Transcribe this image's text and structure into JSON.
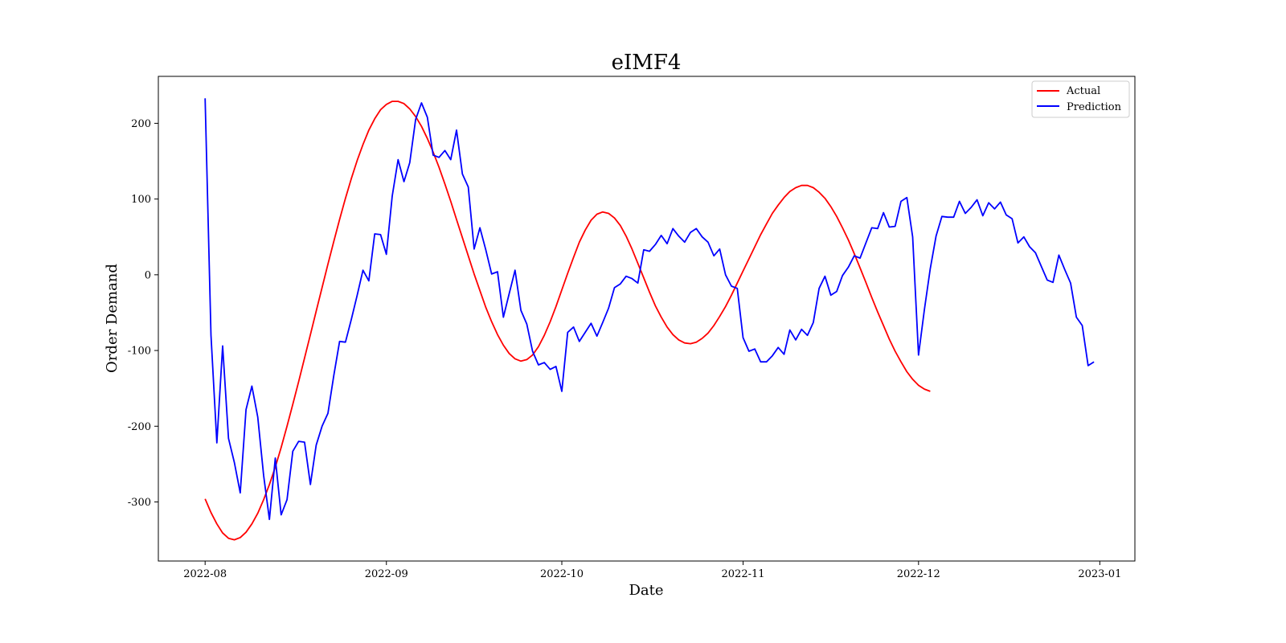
{
  "chart_data": {
    "type": "line",
    "title": "eIMF4",
    "xlabel": "Date",
    "ylabel": "Order Demand",
    "x_ticks": [
      "2022-08",
      "2022-09",
      "2022-10",
      "2022-11",
      "2022-12",
      "2023-01"
    ],
    "x_tick_dates": [
      "2022-08-01",
      "2022-09-01",
      "2022-10-01",
      "2022-11-01",
      "2022-12-01",
      "2023-01-01"
    ],
    "y_ticks": [
      200,
      100,
      0,
      -100,
      -200,
      -300
    ],
    "xlim": [
      "2022-07-24",
      "2023-01-07"
    ],
    "ylim": [
      -378,
      262
    ],
    "legend_position": "top-right",
    "grid": false,
    "series": [
      {
        "name": "Actual",
        "color": "#ff0000",
        "points": [
          [
            "2022-08-01",
            -296
          ],
          [
            "2022-08-02",
            -314
          ],
          [
            "2022-08-03",
            -329
          ],
          [
            "2022-08-04",
            -341
          ],
          [
            "2022-08-05",
            -348
          ],
          [
            "2022-08-06",
            -350
          ],
          [
            "2022-08-07",
            -347
          ],
          [
            "2022-08-08",
            -340
          ],
          [
            "2022-08-09",
            -329
          ],
          [
            "2022-08-10",
            -315
          ],
          [
            "2022-08-11",
            -297
          ],
          [
            "2022-08-12",
            -277
          ],
          [
            "2022-08-13",
            -254
          ],
          [
            "2022-08-14",
            -228
          ],
          [
            "2022-08-15",
            -200
          ],
          [
            "2022-08-16",
            -171
          ],
          [
            "2022-08-17",
            -141
          ],
          [
            "2022-08-18",
            -110
          ],
          [
            "2022-08-19",
            -79
          ],
          [
            "2022-08-20",
            -48
          ],
          [
            "2022-08-21",
            -17
          ],
          [
            "2022-08-22",
            14
          ],
          [
            "2022-08-23",
            44
          ],
          [
            "2022-08-24",
            73
          ],
          [
            "2022-08-25",
            101
          ],
          [
            "2022-08-26",
            127
          ],
          [
            "2022-08-27",
            151
          ],
          [
            "2022-08-28",
            172
          ],
          [
            "2022-08-29",
            191
          ],
          [
            "2022-08-30",
            206
          ],
          [
            "2022-08-31",
            218
          ],
          [
            "2022-09-01",
            225
          ],
          [
            "2022-09-02",
            229
          ],
          [
            "2022-09-03",
            229
          ],
          [
            "2022-09-04",
            226
          ],
          [
            "2022-09-05",
            219
          ],
          [
            "2022-09-06",
            209
          ],
          [
            "2022-09-07",
            196
          ],
          [
            "2022-09-08",
            180
          ],
          [
            "2022-09-09",
            162
          ],
          [
            "2022-09-10",
            142
          ],
          [
            "2022-09-11",
            120
          ],
          [
            "2022-09-12",
            97
          ],
          [
            "2022-09-13",
            73
          ],
          [
            "2022-09-14",
            49
          ],
          [
            "2022-09-15",
            25
          ],
          [
            "2022-09-16",
            1
          ],
          [
            "2022-09-17",
            -21
          ],
          [
            "2022-09-18",
            -43
          ],
          [
            "2022-09-19",
            -62
          ],
          [
            "2022-09-20",
            -79
          ],
          [
            "2022-09-21",
            -93
          ],
          [
            "2022-09-22",
            -104
          ],
          [
            "2022-09-23",
            -111
          ],
          [
            "2022-09-24",
            -114
          ],
          [
            "2022-09-25",
            -112
          ],
          [
            "2022-09-26",
            -106
          ],
          [
            "2022-09-27",
            -95
          ],
          [
            "2022-09-28",
            -80
          ],
          [
            "2022-09-29",
            -62
          ],
          [
            "2022-09-30",
            -42
          ],
          [
            "2022-10-01",
            -20
          ],
          [
            "2022-10-02",
            2
          ],
          [
            "2022-10-03",
            23
          ],
          [
            "2022-10-04",
            43
          ],
          [
            "2022-10-05",
            59
          ],
          [
            "2022-10-06",
            72
          ],
          [
            "2022-10-07",
            80
          ],
          [
            "2022-10-08",
            83
          ],
          [
            "2022-10-09",
            81
          ],
          [
            "2022-10-10",
            75
          ],
          [
            "2022-10-11",
            65
          ],
          [
            "2022-10-12",
            51
          ],
          [
            "2022-10-13",
            34
          ],
          [
            "2022-10-14",
            15
          ],
          [
            "2022-10-15",
            -4
          ],
          [
            "2022-10-16",
            -23
          ],
          [
            "2022-10-17",
            -41
          ],
          [
            "2022-10-18",
            -56
          ],
          [
            "2022-10-19",
            -69
          ],
          [
            "2022-10-20",
            -79
          ],
          [
            "2022-10-21",
            -86
          ],
          [
            "2022-10-22",
            -90
          ],
          [
            "2022-10-23",
            -91
          ],
          [
            "2022-10-24",
            -89
          ],
          [
            "2022-10-25",
            -84
          ],
          [
            "2022-10-26",
            -77
          ],
          [
            "2022-10-27",
            -67
          ],
          [
            "2022-10-28",
            -55
          ],
          [
            "2022-10-29",
            -42
          ],
          [
            "2022-10-30",
            -27
          ],
          [
            "2022-10-31",
            -11
          ],
          [
            "2022-11-01",
            5
          ],
          [
            "2022-11-02",
            21
          ],
          [
            "2022-11-03",
            37
          ],
          [
            "2022-11-04",
            53
          ],
          [
            "2022-11-05",
            67
          ],
          [
            "2022-11-06",
            81
          ],
          [
            "2022-11-07",
            92
          ],
          [
            "2022-11-08",
            102
          ],
          [
            "2022-11-09",
            110
          ],
          [
            "2022-11-10",
            115
          ],
          [
            "2022-11-11",
            118
          ],
          [
            "2022-11-12",
            118
          ],
          [
            "2022-11-13",
            115
          ],
          [
            "2022-11-14",
            109
          ],
          [
            "2022-11-15",
            101
          ],
          [
            "2022-11-16",
            90
          ],
          [
            "2022-11-17",
            77
          ],
          [
            "2022-11-18",
            62
          ],
          [
            "2022-11-19",
            46
          ],
          [
            "2022-11-20",
            28
          ],
          [
            "2022-11-21",
            9
          ],
          [
            "2022-11-22",
            -10
          ],
          [
            "2022-11-23",
            -30
          ],
          [
            "2022-11-24",
            -49
          ],
          [
            "2022-11-25",
            -67
          ],
          [
            "2022-11-26",
            -85
          ],
          [
            "2022-11-27",
            -101
          ],
          [
            "2022-11-28",
            -115
          ],
          [
            "2022-11-29",
            -128
          ],
          [
            "2022-11-30",
            -138
          ],
          [
            "2022-12-01",
            -146
          ],
          [
            "2022-12-02",
            -151
          ],
          [
            "2022-12-03",
            -154
          ]
        ]
      },
      {
        "name": "Prediction",
        "color": "#0000ff",
        "points": [
          [
            "2022-08-01",
            233
          ],
          [
            "2022-08-02",
            -80
          ],
          [
            "2022-08-03",
            -222
          ],
          [
            "2022-08-04",
            -94
          ],
          [
            "2022-08-05",
            -216
          ],
          [
            "2022-08-06",
            -248
          ],
          [
            "2022-08-07",
            -288
          ],
          [
            "2022-08-08",
            -178
          ],
          [
            "2022-08-09",
            -147
          ],
          [
            "2022-08-10",
            -188
          ],
          [
            "2022-08-11",
            -265
          ],
          [
            "2022-08-12",
            -323
          ],
          [
            "2022-08-13",
            -242
          ],
          [
            "2022-08-14",
            -317
          ],
          [
            "2022-08-15",
            -297
          ],
          [
            "2022-08-16",
            -233
          ],
          [
            "2022-08-17",
            -220
          ],
          [
            "2022-08-18",
            -221
          ],
          [
            "2022-08-19",
            -277
          ],
          [
            "2022-08-20",
            -225
          ],
          [
            "2022-08-21",
            -200
          ],
          [
            "2022-08-22",
            -183
          ],
          [
            "2022-08-23",
            -133
          ],
          [
            "2022-08-24",
            -88
          ],
          [
            "2022-08-25",
            -89
          ],
          [
            "2022-08-26",
            -59
          ],
          [
            "2022-08-27",
            -27
          ],
          [
            "2022-08-28",
            6
          ],
          [
            "2022-08-29",
            -8
          ],
          [
            "2022-08-30",
            54
          ],
          [
            "2022-08-31",
            53
          ],
          [
            "2022-09-01",
            27
          ],
          [
            "2022-09-02",
            104
          ],
          [
            "2022-09-03",
            152
          ],
          [
            "2022-09-04",
            123
          ],
          [
            "2022-09-05",
            148
          ],
          [
            "2022-09-06",
            205
          ],
          [
            "2022-09-07",
            227
          ],
          [
            "2022-09-08",
            208
          ],
          [
            "2022-09-09",
            158
          ],
          [
            "2022-09-10",
            155
          ],
          [
            "2022-09-11",
            164
          ],
          [
            "2022-09-12",
            152
          ],
          [
            "2022-09-13",
            191
          ],
          [
            "2022-09-14",
            133
          ],
          [
            "2022-09-15",
            116
          ],
          [
            "2022-09-16",
            34
          ],
          [
            "2022-09-17",
            62
          ],
          [
            "2022-09-18",
            33
          ],
          [
            "2022-09-19",
            1
          ],
          [
            "2022-09-20",
            4
          ],
          [
            "2022-09-21",
            -56
          ],
          [
            "2022-09-22",
            -25
          ],
          [
            "2022-09-23",
            6
          ],
          [
            "2022-09-24",
            -47
          ],
          [
            "2022-09-25",
            -65
          ],
          [
            "2022-09-26",
            -101
          ],
          [
            "2022-09-27",
            -119
          ],
          [
            "2022-09-28",
            -116
          ],
          [
            "2022-09-29",
            -125
          ],
          [
            "2022-09-30",
            -121
          ],
          [
            "2022-10-01",
            -154
          ],
          [
            "2022-10-02",
            -76
          ],
          [
            "2022-10-03",
            -69
          ],
          [
            "2022-10-04",
            -88
          ],
          [
            "2022-10-05",
            -76
          ],
          [
            "2022-10-06",
            -64
          ],
          [
            "2022-10-07",
            -81
          ],
          [
            "2022-10-08",
            -63
          ],
          [
            "2022-10-09",
            -44
          ],
          [
            "2022-10-10",
            -17
          ],
          [
            "2022-10-11",
            -12
          ],
          [
            "2022-10-12",
            -2
          ],
          [
            "2022-10-13",
            -5
          ],
          [
            "2022-10-14",
            -11
          ],
          [
            "2022-10-15",
            33
          ],
          [
            "2022-10-16",
            31
          ],
          [
            "2022-10-17",
            40
          ],
          [
            "2022-10-18",
            52
          ],
          [
            "2022-10-19",
            41
          ],
          [
            "2022-10-20",
            61
          ],
          [
            "2022-10-21",
            51
          ],
          [
            "2022-10-22",
            43
          ],
          [
            "2022-10-23",
            56
          ],
          [
            "2022-10-24",
            61
          ],
          [
            "2022-10-25",
            50
          ],
          [
            "2022-10-26",
            43
          ],
          [
            "2022-10-27",
            25
          ],
          [
            "2022-10-28",
            34
          ],
          [
            "2022-10-29",
            0
          ],
          [
            "2022-10-30",
            -15
          ],
          [
            "2022-10-31",
            -18
          ],
          [
            "2022-11-01",
            -83
          ],
          [
            "2022-11-02",
            -101
          ],
          [
            "2022-11-03",
            -98
          ],
          [
            "2022-11-04",
            -115
          ],
          [
            "2022-11-05",
            -115
          ],
          [
            "2022-11-06",
            -107
          ],
          [
            "2022-11-07",
            -96
          ],
          [
            "2022-11-08",
            -105
          ],
          [
            "2022-11-09",
            -73
          ],
          [
            "2022-11-10",
            -86
          ],
          [
            "2022-11-11",
            -72
          ],
          [
            "2022-11-12",
            -80
          ],
          [
            "2022-11-13",
            -63
          ],
          [
            "2022-11-14",
            -18
          ],
          [
            "2022-11-15",
            -2
          ],
          [
            "2022-11-16",
            -27
          ],
          [
            "2022-11-17",
            -22
          ],
          [
            "2022-11-18",
            -1
          ],
          [
            "2022-11-19",
            10
          ],
          [
            "2022-11-20",
            25
          ],
          [
            "2022-11-21",
            22
          ],
          [
            "2022-11-22",
            42
          ],
          [
            "2022-11-23",
            62
          ],
          [
            "2022-11-24",
            61
          ],
          [
            "2022-11-25",
            82
          ],
          [
            "2022-11-26",
            63
          ],
          [
            "2022-11-27",
            64
          ],
          [
            "2022-11-28",
            97
          ],
          [
            "2022-11-29",
            102
          ],
          [
            "2022-11-30",
            50
          ],
          [
            "2022-12-01",
            -106
          ],
          [
            "2022-12-02",
            -46
          ],
          [
            "2022-12-03",
            8
          ],
          [
            "2022-12-04",
            51
          ],
          [
            "2022-12-05",
            77
          ],
          [
            "2022-12-06",
            76
          ],
          [
            "2022-12-07",
            76
          ],
          [
            "2022-12-08",
            97
          ],
          [
            "2022-12-09",
            81
          ],
          [
            "2022-12-10",
            89
          ],
          [
            "2022-12-11",
            99
          ],
          [
            "2022-12-12",
            78
          ],
          [
            "2022-12-13",
            95
          ],
          [
            "2022-12-14",
            87
          ],
          [
            "2022-12-15",
            96
          ],
          [
            "2022-12-16",
            79
          ],
          [
            "2022-12-17",
            74
          ],
          [
            "2022-12-18",
            42
          ],
          [
            "2022-12-19",
            50
          ],
          [
            "2022-12-20",
            37
          ],
          [
            "2022-12-21",
            29
          ],
          [
            "2022-12-22",
            11
          ],
          [
            "2022-12-23",
            -7
          ],
          [
            "2022-12-24",
            -10
          ],
          [
            "2022-12-25",
            26
          ],
          [
            "2022-12-26",
            7
          ],
          [
            "2022-12-27",
            -11
          ],
          [
            "2022-12-28",
            -56
          ],
          [
            "2022-12-29",
            -67
          ],
          [
            "2022-12-30",
            -120
          ],
          [
            "2022-12-31",
            -115
          ]
        ]
      }
    ]
  }
}
